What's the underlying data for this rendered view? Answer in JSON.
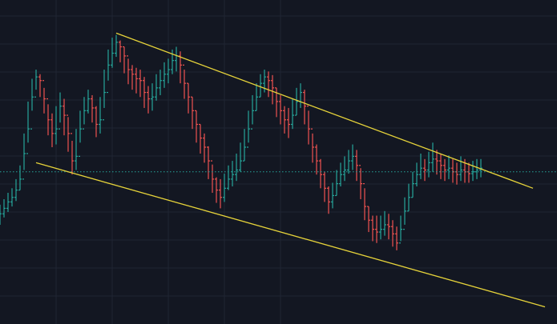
{
  "chart_data": {
    "type": "ohlc",
    "title": "",
    "xlabel": "",
    "ylabel": "",
    "grid": true,
    "x": [
      0,
      5,
      10,
      15,
      20,
      25,
      30,
      35,
      40,
      45,
      50,
      55,
      60,
      65,
      70,
      75,
      80,
      85,
      90,
      95,
      100,
      105,
      110,
      115,
      120,
      125,
      130,
      135,
      140,
      145,
      150,
      155,
      160,
      165,
      170,
      175,
      180,
      185,
      190,
      195,
      200,
      205,
      210,
      215,
      220,
      225,
      230,
      235,
      240,
      245,
      250,
      255,
      260,
      265,
      270,
      275,
      280,
      285,
      290,
      295,
      300,
      305,
      310,
      315,
      320,
      325,
      330,
      335,
      340,
      345,
      350,
      355,
      360,
      365,
      370,
      375,
      380,
      385,
      390,
      395,
      400,
      405,
      410,
      415,
      420,
      425,
      430,
      435,
      440,
      445,
      450,
      455,
      460,
      465,
      470,
      475,
      480,
      485,
      490,
      495,
      500,
      505,
      510,
      515,
      520,
      525,
      530,
      535,
      540,
      545,
      550,
      555,
      560,
      565,
      570,
      575,
      580,
      585,
      590,
      595,
      600
    ],
    "close": [
      112,
      118,
      125,
      130,
      138,
      150,
      178,
      205,
      240,
      262,
      258,
      238,
      215,
      200,
      205,
      230,
      220,
      200,
      170,
      175,
      205,
      225,
      238,
      228,
      210,
      215,
      245,
      275,
      288,
      300,
      295,
      285,
      270,
      265,
      260,
      258,
      245,
      238,
      240,
      250,
      258,
      265,
      270,
      280,
      285,
      275,
      255,
      240,
      225,
      210,
      195,
      185,
      170,
      150,
      138,
      130,
      140,
      150,
      155,
      160,
      170,
      185,
      205,
      225,
      240,
      255,
      262,
      258,
      250,
      235,
      225,
      215,
      210,
      220,
      235,
      245,
      230,
      205,
      185,
      170,
      155,
      140,
      125,
      132,
      145,
      155,
      160,
      170,
      175,
      165,
      145,
      120,
      105,
      95,
      92,
      95,
      100,
      98,
      90,
      80,
      95,
      115,
      130,
      145,
      155,
      162,
      160,
      168,
      172,
      170,
      165,
      160,
      162,
      158,
      155,
      160,
      158,
      156,
      158,
      160,
      162
    ],
    "high": [
      122,
      128,
      135,
      140,
      150,
      165,
      200,
      235,
      260,
      270,
      265,
      250,
      232,
      222,
      230,
      245,
      238,
      218,
      192,
      205,
      225,
      240,
      248,
      242,
      230,
      240,
      270,
      292,
      305,
      308,
      302,
      295,
      282,
      275,
      272,
      270,
      262,
      252,
      255,
      265,
      270,
      278,
      282,
      292,
      295,
      290,
      270,
      255,
      240,
      225,
      210,
      200,
      186,
      166,
      152,
      150,
      156,
      165,
      170,
      178,
      190,
      205,
      225,
      242,
      255,
      265,
      270,
      268,
      264,
      250,
      242,
      230,
      228,
      238,
      250,
      255,
      248,
      225,
      200,
      188,
      172,
      158,
      142,
      146,
      160,
      168,
      175,
      182,
      188,
      182,
      162,
      140,
      120,
      110,
      110,
      110,
      115,
      112,
      105,
      98,
      110,
      130,
      145,
      158,
      168,
      178,
      172,
      180,
      190,
      182,
      178,
      172,
      176,
      172,
      168,
      175,
      172,
      168,
      170,
      172,
      172
    ],
    "low": [
      100,
      108,
      114,
      120,
      126,
      138,
      160,
      190,
      225,
      248,
      240,
      222,
      198,
      185,
      188,
      212,
      198,
      180,
      155,
      160,
      190,
      210,
      222,
      212,
      196,
      200,
      228,
      258,
      272,
      284,
      278,
      266,
      254,
      248,
      244,
      240,
      228,
      222,
      225,
      236,
      242,
      250,
      255,
      265,
      268,
      255,
      238,
      222,
      205,
      190,
      178,
      168,
      150,
      135,
      124,
      118,
      125,
      138,
      142,
      148,
      158,
      170,
      190,
      210,
      225,
      240,
      245,
      240,
      232,
      218,
      210,
      200,
      195,
      205,
      220,
      228,
      210,
      188,
      168,
      155,
      140,
      125,
      112,
      118,
      132,
      142,
      148,
      156,
      160,
      148,
      128,
      105,
      92,
      82,
      80,
      84,
      88,
      84,
      76,
      72,
      82,
      100,
      115,
      130,
      142,
      150,
      148,
      152,
      158,
      155,
      150,
      148,
      150,
      146,
      144,
      148,
      146,
      146,
      148,
      150,
      152
    ],
    "reference_level": 158,
    "trendlines": [
      {
        "x": [
          145,
          665
        ],
        "y": [
          310,
          140
        ]
      },
      {
        "x": [
          45,
          680
        ],
        "y": [
          168,
          10
        ]
      }
    ],
    "xlim": [
      0,
      695
    ],
    "ylim": [
      0,
      320
    ],
    "colors": {
      "background": "#131722",
      "grid": "#1f2433",
      "up": "#26a69a",
      "down": "#ef5350",
      "trendline": "#e6d33a",
      "reference_line": "#26a69a"
    }
  }
}
